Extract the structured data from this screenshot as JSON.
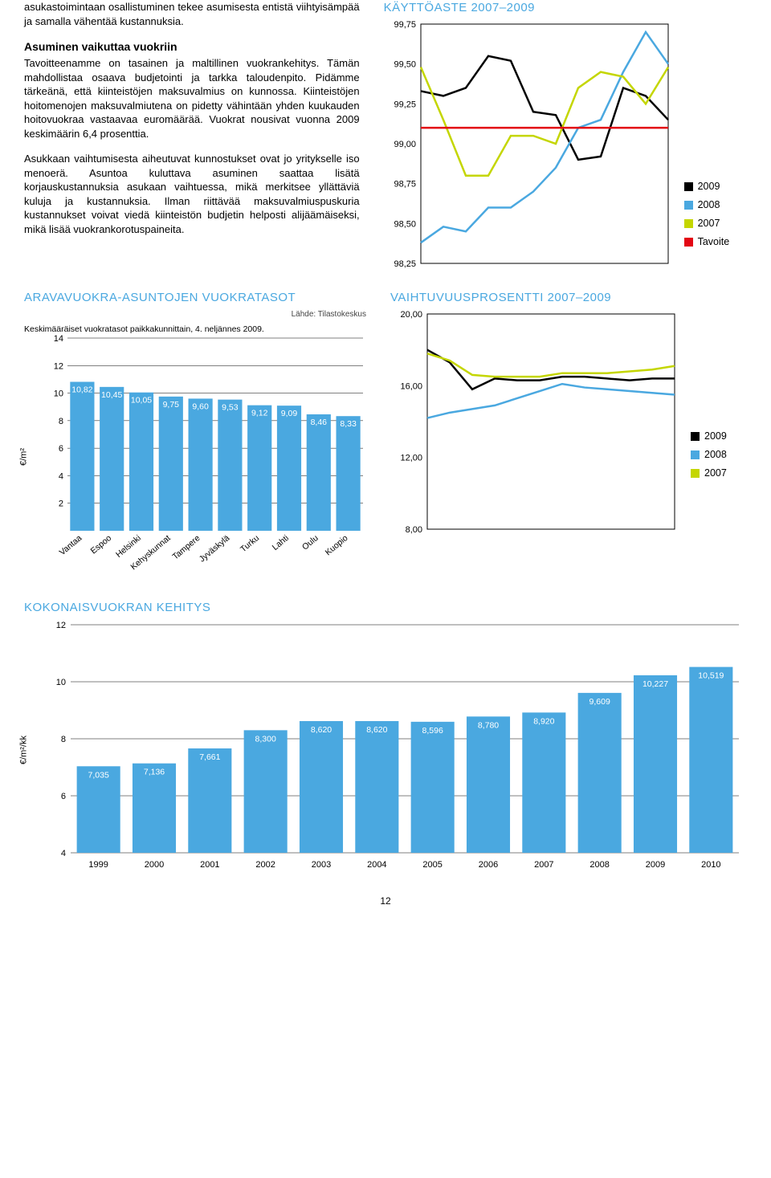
{
  "text": {
    "p1": "asukastoimintaan osallistuminen tekee asumisesta entistä viihtyisämpää ja samalla vähentää kustannuksia.",
    "h2": "Asuminen vaikuttaa vuokriin",
    "p2": "Tavoitteenamme on tasainen ja maltillinen vuokrankehitys. Tämän mahdollistaa osaava budjetointi ja tarkka taloudenpito. Pidämme tärkeänä, että kiinteistöjen maksuvalmius on kunnossa. Kiinteistöjen hoitomenojen maksuvalmiutena on pidetty vähintään yhden kuukauden hoitovuokraa vastaavaa euromäärää. Vuokrat nousivat vuonna 2009 keskimäärin 6,4 prosenttia.",
    "p3": "Asukkaan vaihtumisesta aiheutuvat kunnostukset ovat jo yritykselle iso menoerä. Asuntoa kuluttava asuminen saattaa lisätä korjauskustannuksia asukaan vaihtuessa, mikä merkitsee yllättäviä kuluja ja kustannuksia. Ilman riittävää maksuvalmiuspuskuria kustannukset voivat viedä kiinteistön budjetin helposti alijäämäiseksi, mikä lisää vuokrankorotuspaineita."
  },
  "chart_kaytto": {
    "title": "KÄYTTÖASTE 2007–2009",
    "ymin": 98.25,
    "ymax": 99.75,
    "yticks": [
      "99,75",
      "99,50",
      "99,25",
      "99,00",
      "98,75",
      "98,50",
      "98,25"
    ],
    "ytick_vals": [
      99.75,
      99.5,
      99.25,
      99.0,
      98.75,
      98.5,
      98.25
    ],
    "n": 12,
    "series": {
      "s2009": {
        "color": "#000000",
        "values": [
          99.33,
          99.3,
          99.35,
          99.55,
          99.52,
          99.2,
          99.18,
          98.9,
          98.92,
          99.35,
          99.3,
          99.15
        ]
      },
      "s2008": {
        "color": "#4aa8e0",
        "values": [
          98.38,
          98.48,
          98.45,
          98.6,
          98.6,
          98.7,
          98.85,
          99.1,
          99.15,
          99.45,
          99.7,
          99.5
        ]
      },
      "s2007": {
        "color": "#c4d600",
        "values": [
          99.48,
          99.15,
          98.8,
          98.8,
          99.05,
          99.05,
          99.0,
          99.35,
          99.45,
          99.42,
          99.25,
          99.48
        ]
      },
      "tavoite": {
        "color": "#e30613",
        "values": [
          99.1,
          99.1,
          99.1,
          99.1,
          99.1,
          99.1,
          99.1,
          99.1,
          99.1,
          99.1,
          99.1,
          99.1
        ]
      }
    },
    "legend": [
      {
        "label": "2009",
        "color": "#000000"
      },
      {
        "label": "2008",
        "color": "#4aa8e0"
      },
      {
        "label": "2007",
        "color": "#c4d600"
      },
      {
        "label": "Tavoite",
        "color": "#e30613"
      }
    ]
  },
  "chart_arava": {
    "title": "ARAVAVUOKRA-ASUNTOJEN VUOKRATASOT",
    "source": "Lähde: Tilastokeskus",
    "subnote": "Keskimääräiset vuokratasot paikkakunnittain, 4. neljännes 2009.",
    "ylabel": "€/m²",
    "ymin": 0,
    "ymax": 14,
    "yticks": [
      14,
      12,
      10,
      8,
      6,
      4,
      2
    ],
    "categories": [
      "Vantaa",
      "Espoo",
      "Helsinki",
      "Kehyskunnat",
      "Tampere",
      "Jyväskylä",
      "Turku",
      "Lahti",
      "Oulu",
      "Kuopio"
    ],
    "values": [
      10.82,
      10.45,
      10.05,
      9.75,
      9.6,
      9.53,
      9.12,
      9.09,
      8.46,
      8.33
    ],
    "labels": [
      "10,82",
      "10,45",
      "10,05",
      "9,75",
      "9,60",
      "9,53",
      "9,12",
      "9,09",
      "8,46",
      "8,33"
    ],
    "bar_color": "#4aa8e0"
  },
  "chart_vaihtuvuus": {
    "title": "VAIHTUVUUSPROSENTTI 2007–2009",
    "ymin": 8,
    "ymax": 20,
    "yticks": [
      "20,00",
      "16,00",
      "12,00",
      "8,00"
    ],
    "ytick_vals": [
      20,
      16,
      12,
      8
    ],
    "n": 12,
    "series": {
      "s2009": {
        "color": "#000000",
        "values": [
          18.0,
          17.3,
          15.8,
          16.4,
          16.3,
          16.3,
          16.5,
          16.5,
          16.4,
          16.3,
          16.4,
          16.4
        ]
      },
      "s2008": {
        "color": "#4aa8e0",
        "values": [
          14.2,
          14.5,
          14.7,
          14.9,
          15.3,
          15.7,
          16.1,
          15.9,
          15.8,
          15.7,
          15.6,
          15.5
        ]
      },
      "s2007": {
        "color": "#c4d600",
        "values": [
          17.8,
          17.4,
          16.6,
          16.5,
          16.5,
          16.5,
          16.7,
          16.7,
          16.7,
          16.8,
          16.9,
          17.1
        ]
      }
    },
    "legend": [
      {
        "label": "2009",
        "color": "#000000"
      },
      {
        "label": "2008",
        "color": "#4aa8e0"
      },
      {
        "label": "2007",
        "color": "#c4d600"
      }
    ]
  },
  "chart_kokonais": {
    "title": "KOKONAISVUOKRAN KEHITYS",
    "ylabel": "€/m²/kk",
    "ymin": 4,
    "ymax": 12,
    "yticks": [
      12,
      10,
      8,
      6,
      4
    ],
    "categories": [
      "1999",
      "2000",
      "2001",
      "2002",
      "2003",
      "2004",
      "2005",
      "2006",
      "2007",
      "2008",
      "2009",
      "2010"
    ],
    "values": [
      7.035,
      7.136,
      7.661,
      8.3,
      8.62,
      8.62,
      8.596,
      8.78,
      8.92,
      9.609,
      10.227,
      10.519
    ],
    "labels": [
      "7,035",
      "7,136",
      "7,661",
      "8,300",
      "8,620",
      "8,620",
      "8,596",
      "8,780",
      "8,920",
      "9,609",
      "10,227",
      "10,519"
    ],
    "bar_color": "#4aa8e0"
  },
  "page_number": "12"
}
